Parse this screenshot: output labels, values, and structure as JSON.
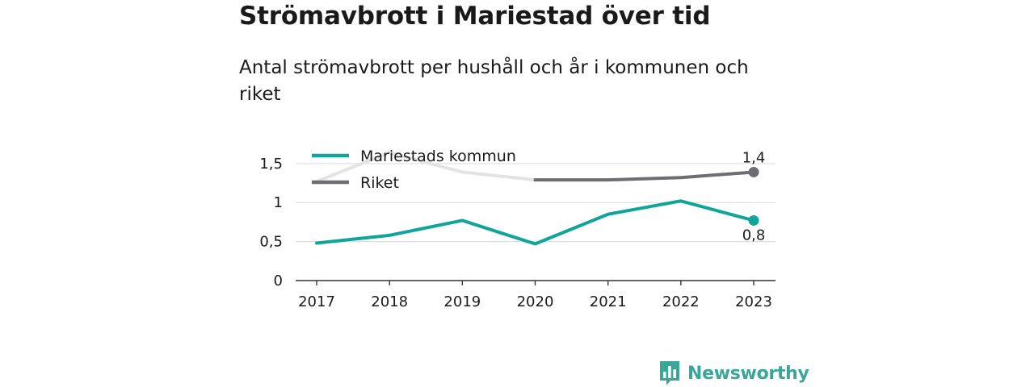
{
  "title": "Strömavbrott i Mariestad över tid",
  "subtitle": "Antal strömavbrott per hushåll och år i kommunen och riket",
  "brand": {
    "name": "Newsworthy",
    "icon": "newsworthy-chart-icon"
  },
  "chart_data": {
    "type": "line",
    "title": "Strömavbrott i Mariestad över tid",
    "subtitle": "Antal strömavbrott per hushåll och år i kommunen och riket",
    "xlabel": "",
    "ylabel": "",
    "categories": [
      "2017",
      "2018",
      "2019",
      "2020",
      "2021",
      "2022",
      "2023"
    ],
    "ylim": [
      0,
      1.8
    ],
    "yticks": [
      {
        "value": 0,
        "label": "0"
      },
      {
        "value": 0.5,
        "label": "0,5"
      },
      {
        "value": 1,
        "label": "1"
      },
      {
        "value": 1.5,
        "label": "1,5"
      }
    ],
    "grid": true,
    "legend_position": "top-left",
    "series": [
      {
        "name": "Mariestads kommun",
        "color": "#11a59a",
        "values": [
          0.48,
          0.58,
          0.77,
          0.47,
          0.85,
          1.02,
          0.77
        ],
        "end_label": "0,8"
      },
      {
        "name": "Riket",
        "color": "#6d6d73",
        "faded_color": "#e3e3e3",
        "faded_until": "2020",
        "values": [
          1.27,
          1.64,
          1.39,
          1.29,
          1.29,
          1.32,
          1.39
        ],
        "end_label": "1,4"
      }
    ]
  }
}
